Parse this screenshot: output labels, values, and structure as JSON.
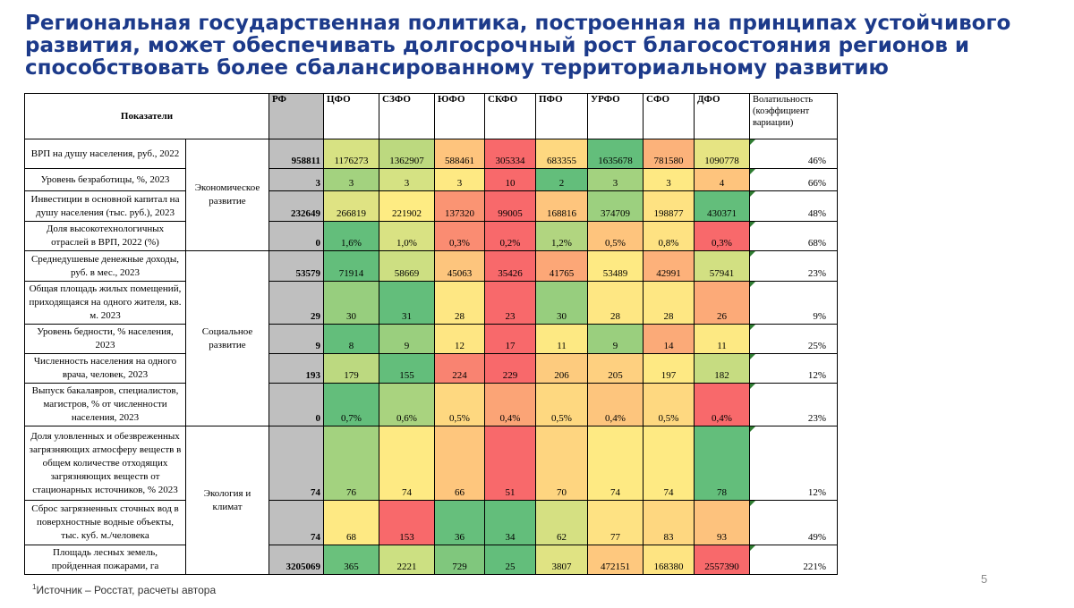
{
  "title": "Региональная государственная политика, построенная на принципах устойчивого развития, может обеспечивать долгосрочный рост благосостояния регионов и способствовать более сбалансированному территориальному развитию",
  "table": {
    "headers": {
      "indicators": "Показатели",
      "rf": "РФ",
      "districts": [
        "ЦФО",
        "СЗФО",
        "ЮФО",
        "СКФО",
        "ПФО",
        "УРФО",
        "СФО",
        "ДФО"
      ],
      "volatility": "Волатильность (коэффициент вариации)"
    },
    "groups": [
      "Экономическое развитие",
      "Социальное развитие",
      "Экология и климат"
    ],
    "rows": [
      {
        "label": "ВРП на душу населения, руб., 2022",
        "rf": "958811",
        "values": [
          "1176273",
          "1362907",
          "588461",
          "305334",
          "683355",
          "1635678",
          "781580",
          "1090778"
        ],
        "colors": [
          "#d7e283",
          "#bcd97f",
          "#fec47d",
          "#f8696b",
          "#fed880",
          "#63be7b",
          "#fcb27a",
          "#e6e483"
        ],
        "vol": "46%"
      },
      {
        "label": "Уровень безработицы, %, 2023",
        "rf": "3",
        "values": [
          "3",
          "3",
          "3",
          "10",
          "2",
          "3",
          "3",
          "4"
        ],
        "colors": [
          "#a3d27f",
          "#d5e283",
          "#fee983",
          "#f8696b",
          "#63be7b",
          "#a3d27f",
          "#fee983",
          "#fec47d"
        ],
        "vol": "66%"
      },
      {
        "label": "Инвестиции в основной капитал на душу населения (тыс. руб.), 2023",
        "rf": "232649",
        "values": [
          "266819",
          "221902",
          "137320",
          "99005",
          "168816",
          "374709",
          "198877",
          "430371"
        ],
        "colors": [
          "#dfe383",
          "#feec83",
          "#fa9473",
          "#f8696b",
          "#fec57d",
          "#9cd07f",
          "#fee282",
          "#63be7b"
        ],
        "vol": "48%"
      },
      {
        "label": "Доля высокотехнологичных отраслей в ВРП, 2022 (%)",
        "rf": "0",
        "values": [
          "1,6%",
          "1,0%",
          "0,3%",
          "0,2%",
          "1,2%",
          "0,5%",
          "0,8%",
          "0,3%"
        ],
        "colors": [
          "#63be7b",
          "#d9e283",
          "#fa8c72",
          "#f8696b",
          "#b1d580",
          "#fec47d",
          "#fee282",
          "#f8696b"
        ],
        "vol": "68%"
      },
      {
        "label": "Среднедушевые денежные доходы, руб. в мес., 2023",
        "rf": "53579",
        "values": [
          "71914",
          "58669",
          "45063",
          "35426",
          "41765",
          "53489",
          "42991",
          "57941"
        ],
        "colors": [
          "#63be7b",
          "#cddf82",
          "#fdc57d",
          "#f8696b",
          "#fca777",
          "#feea83",
          "#fdb17a",
          "#d2e082"
        ],
        "vol": "23%"
      },
      {
        "label": "Общая площадь жилых помещений, приходящаяся на одного жителя, кв. м. 2023",
        "rf": "29",
        "values": [
          "30",
          "31",
          "28",
          "23",
          "30",
          "28",
          "28",
          "26"
        ],
        "colors": [
          "#97ce7e",
          "#63be7b",
          "#fee783",
          "#f8696b",
          "#97ce7e",
          "#fee783",
          "#fee783",
          "#fcaa78"
        ],
        "vol": "9%"
      },
      {
        "label": "Уровень бедности, % населения, 2023",
        "rf": "9",
        "values": [
          "8",
          "9",
          "12",
          "17",
          "11",
          "9",
          "14",
          "11"
        ],
        "colors": [
          "#63be7b",
          "#9acf7e",
          "#fee683",
          "#f8696b",
          "#fde983",
          "#9acf7e",
          "#fbaa78",
          "#fde983"
        ],
        "vol": "25%"
      },
      {
        "label": "Численность населения на одного врача, человек, 2023",
        "rf": "193",
        "values": [
          "179",
          "155",
          "224",
          "229",
          "206",
          "205",
          "197",
          "182"
        ],
        "colors": [
          "#bcd980",
          "#63be7b",
          "#f98371",
          "#f8696b",
          "#fdcb7e",
          "#fed080",
          "#fee983",
          "#c6dc81"
        ],
        "vol": "12%"
      },
      {
        "label": "Выпуск бакалавров, специалистов, магистров, % от численности населения, 2023",
        "rf": "0",
        "values": [
          "0,7%",
          "0,6%",
          "0,5%",
          "0,4%",
          "0,5%",
          "0,4%",
          "0,5%",
          "0,4%"
        ],
        "colors": [
          "#63be7b",
          "#a9d37f",
          "#fed880",
          "#fba476",
          "#fed880",
          "#fdc57d",
          "#fed880",
          "#f8696b"
        ],
        "vol": "23%"
      },
      {
        "label": "Доля уловленных и обезвреженных загрязняющих атмосферу веществ в общем количестве отходящих загрязняющих веществ от стационарных источников, % 2023",
        "rf": "74",
        "values": [
          "76",
          "74",
          "66",
          "51",
          "70",
          "74",
          "74",
          "78"
        ],
        "colors": [
          "#a3d27f",
          "#feea83",
          "#fec67d",
          "#f8696b",
          "#fed580",
          "#feea83",
          "#feea83",
          "#63be7b"
        ],
        "vol": "12%"
      },
      {
        "label": "Сброс загрязненных сточных вод в поверхностные водные объекты, тыс. куб. м./человека",
        "rf": "74",
        "values": [
          "68",
          "153",
          "36",
          "34",
          "62",
          "77",
          "83",
          "93"
        ],
        "colors": [
          "#fee983",
          "#f8696b",
          "#66bf7c",
          "#63be7b",
          "#d5e082",
          "#fee283",
          "#fed780",
          "#fdc27d"
        ],
        "vol": "49%"
      },
      {
        "label": "Площадь лесных земель, пройденная пожарами, га",
        "rf": "3205069",
        "values": [
          "365",
          "2221",
          "729",
          "25",
          "3807",
          "472151",
          "168380",
          "2557390"
        ],
        "colors": [
          "#6ac17c",
          "#cce082",
          "#80c77d",
          "#63be7b",
          "#e0e383",
          "#fec87e",
          "#fee482",
          "#f8696b"
        ],
        "vol": "221%"
      }
    ]
  },
  "footnote": {
    "sup": "1",
    "text": "Источник – Росстат, расчеты автора"
  },
  "page_number": "5"
}
